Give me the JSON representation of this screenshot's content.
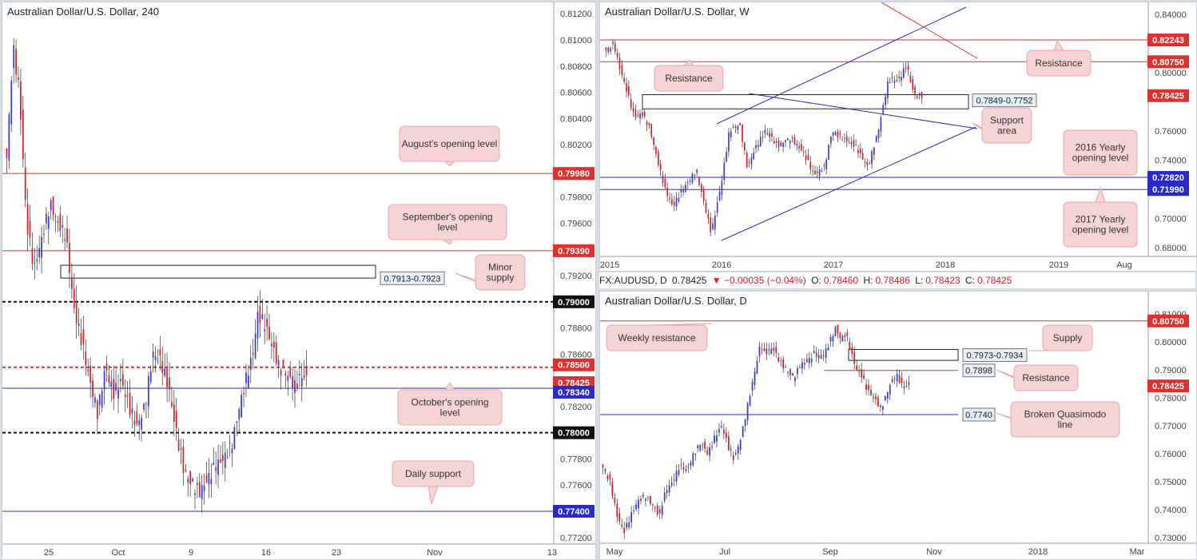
{
  "colors": {
    "bull": "#3b3bdb",
    "bear": "#d8202a",
    "res": "#e03030",
    "sup": "#2a2acc",
    "note_bg": "#f6d3d5",
    "note_border": "#e8a6aa"
  },
  "panels": {
    "left": {
      "title": "Australian Dollar/U.S. Dollar, 240",
      "y_ticks": [
        "0.81200",
        "0.81000",
        "0.80800",
        "0.80600",
        "0.80400",
        "0.80200",
        "0.79800",
        "0.79600",
        "0.79200",
        "0.78800",
        "0.78600",
        "0.78200",
        "0.77800",
        "0.77600",
        "0.77200"
      ],
      "x_ticks": [
        "25",
        "Oct",
        "9",
        "16",
        "23",
        "Nov",
        "13"
      ],
      "price_labels": [
        {
          "v": "0.79980",
          "bg": "#e03030"
        },
        {
          "v": "0.79390",
          "bg": "#e03030"
        },
        {
          "v": "0.79000",
          "bg": "#111111"
        },
        {
          "v": "0.78500",
          "bg": "#e03030"
        },
        {
          "v": "0.78425",
          "bg": "#e03030"
        },
        {
          "v": "0.78340",
          "bg": "#2a2acc"
        },
        {
          "v": "0.78000",
          "bg": "#111111"
        },
        {
          "v": "0.77400",
          "bg": "#2a2acc"
        }
      ],
      "notes": [
        "August's opening level",
        "September's opening level",
        "Minor supply",
        "October's opening level",
        "Daily support"
      ],
      "zone_label": "0.7913-0.7923"
    },
    "weekly": {
      "title": "Australian Dollar/U.S. Dollar, W",
      "y_ticks": [
        "0.84000",
        "0.80000",
        "0.76000",
        "0.74000",
        "0.70000",
        "0.68000"
      ],
      "x_ticks": [
        "2015",
        "2016",
        "2017",
        "2018",
        "2019",
        "Aug"
      ],
      "price_labels": [
        {
          "v": "0.82243",
          "bg": "#e03030"
        },
        {
          "v": "0.80750",
          "bg": "#e03030"
        },
        {
          "v": "0.78425",
          "bg": "#e03030"
        },
        {
          "v": "0.72820",
          "bg": "#2a2acc"
        },
        {
          "v": "0.71990",
          "bg": "#2a2acc"
        }
      ],
      "notes": [
        "Resistance",
        "Resistance",
        "Support area",
        "2016 Yearly opening level",
        "2017 Yearly opening level"
      ],
      "zone_label": "0.7849-0.7752"
    },
    "daily": {
      "title": "Australian Dollar/U.S. Dollar, D",
      "header": {
        "symbol": "FX:AUDUSD, D",
        "last": "0.78425",
        "change": "▼ −0.00035 (−0.04%)",
        "o_label": "O:",
        "o": "0.78460",
        "h_label": "H:",
        "h": "0.78486",
        "l_label": "L:",
        "l": "0.78423",
        "c_label": "C:",
        "c": "0.78425"
      },
      "y_ticks": [
        "0.81000",
        "0.80000",
        "0.79000",
        "0.78000",
        "0.77000",
        "0.76000",
        "0.75000",
        "0.74000",
        "0.73000"
      ],
      "x_ticks": [
        "May",
        "Jul",
        "Sep",
        "Nov",
        "2018",
        "Mar"
      ],
      "price_labels": [
        {
          "v": "0.80750",
          "bg": "#e03030"
        },
        {
          "v": "0.78425",
          "bg": "#e03030"
        }
      ],
      "notes": [
        "Weekly resistance",
        "Supply",
        "Resistance",
        "Broken Quasimodo line"
      ],
      "zone_labels": [
        "0.7973-0.7934",
        "0.7898",
        "0.7740"
      ]
    }
  },
  "chart_data": [
    {
      "type": "candlestick",
      "title": "Australian Dollar/U.S. Dollar, 240",
      "ylim": [
        0.7715,
        0.8125
      ],
      "levels": [
        {
          "label": "August's opening level",
          "y": 0.7998,
          "color": "#e03030",
          "style": "solid"
        },
        {
          "label": "September's opening level",
          "y": 0.7939,
          "color": "#e03030",
          "style": "solid"
        },
        {
          "label": "",
          "y": 0.79,
          "color": "#111111",
          "style": "dashed"
        },
        {
          "label": "",
          "y": 0.785,
          "color": "#e03030",
          "style": "dashed"
        },
        {
          "label": "October's opening level",
          "y": 0.7834,
          "color": "#2a2acc",
          "style": "solid"
        },
        {
          "label": "",
          "y": 0.78,
          "color": "#111111",
          "style": "dashed"
        },
        {
          "label": "Daily support",
          "y": 0.774,
          "color": "#2a2acc",
          "style": "solid"
        }
      ],
      "zone": {
        "label": "Minor supply",
        "low": 0.7913,
        "high": 0.7923
      },
      "path": [
        [
          0,
          0.801
        ],
        [
          8,
          0.8095
        ],
        [
          16,
          0.806
        ],
        [
          25,
          0.796
        ],
        [
          35,
          0.7925
        ],
        [
          45,
          0.795
        ],
        [
          55,
          0.7975
        ],
        [
          65,
          0.796
        ],
        [
          75,
          0.795
        ],
        [
          85,
          0.7895
        ],
        [
          95,
          0.787
        ],
        [
          105,
          0.784
        ],
        [
          115,
          0.7815
        ],
        [
          125,
          0.785
        ],
        [
          135,
          0.783
        ],
        [
          145,
          0.784
        ],
        [
          155,
          0.782
        ],
        [
          165,
          0.7805
        ],
        [
          175,
          0.782
        ],
        [
          185,
          0.786
        ],
        [
          195,
          0.7855
        ],
        [
          205,
          0.7835
        ],
        [
          215,
          0.78
        ],
        [
          225,
          0.777
        ],
        [
          235,
          0.776
        ],
        [
          245,
          0.7755
        ],
        [
          255,
          0.7765
        ],
        [
          265,
          0.7775
        ],
        [
          275,
          0.778
        ],
        [
          285,
          0.779
        ],
        [
          295,
          0.782
        ],
        [
          305,
          0.7845
        ],
        [
          312,
          0.786
        ],
        [
          318,
          0.789
        ],
        [
          325,
          0.7885
        ],
        [
          335,
          0.787
        ],
        [
          345,
          0.785
        ],
        [
          355,
          0.7845
        ],
        [
          365,
          0.7835
        ],
        [
          375,
          0.7845
        ],
        [
          380,
          0.7842
        ]
      ]
    },
    {
      "type": "candlestick",
      "title": "Australian Dollar/U.S. Dollar, W",
      "ylim": [
        0.674,
        0.846
      ],
      "levels": [
        {
          "label": "Resistance",
          "y": 0.82243,
          "color": "#e03030",
          "style": "solid"
        },
        {
          "label": "Resistance",
          "y": 0.8075,
          "color": "#e03030",
          "style": "solid"
        },
        {
          "label": "2016 Yearly opening level",
          "y": 0.7282,
          "color": "#2a2acc",
          "style": "solid"
        },
        {
          "label": "2017 Yearly opening level",
          "y": 0.7199,
          "color": "#2a2acc",
          "style": "solid"
        }
      ],
      "zone": {
        "label": "Support area",
        "low": 0.7752,
        "high": 0.7849
      },
      "path": [
        [
          0,
          0.815
        ],
        [
          6,
          0.82
        ],
        [
          10,
          0.805
        ],
        [
          16,
          0.788
        ],
        [
          22,
          0.77
        ],
        [
          28,
          0.772
        ],
        [
          34,
          0.762
        ],
        [
          40,
          0.74
        ],
        [
          46,
          0.72
        ],
        [
          52,
          0.708
        ],
        [
          58,
          0.718
        ],
        [
          64,
          0.725
        ],
        [
          70,
          0.733
        ],
        [
          76,
          0.712
        ],
        [
          82,
          0.69
        ],
        [
          90,
          0.725
        ],
        [
          96,
          0.76
        ],
        [
          104,
          0.765
        ],
        [
          110,
          0.735
        ],
        [
          116,
          0.748
        ],
        [
          124,
          0.76
        ],
        [
          134,
          0.75
        ],
        [
          144,
          0.755
        ],
        [
          154,
          0.745
        ],
        [
          162,
          0.73
        ],
        [
          170,
          0.735
        ],
        [
          176,
          0.76
        ],
        [
          184,
          0.755
        ],
        [
          194,
          0.75
        ],
        [
          204,
          0.735
        ],
        [
          212,
          0.76
        ],
        [
          220,
          0.795
        ],
        [
          228,
          0.795
        ],
        [
          234,
          0.805
        ],
        [
          240,
          0.785
        ],
        [
          246,
          0.7842
        ]
      ],
      "trendlines": [
        [
          0.759,
          0.835
        ],
        [
          0.694,
          0.76
        ],
        [
          0.782,
          0.762
        ],
        [
          0.842,
          0.808
        ]
      ]
    },
    {
      "type": "candlestick",
      "title": "Australian Dollar/U.S. Dollar, D",
      "ylim": [
        0.728,
        0.814
      ],
      "levels": [
        {
          "label": "Weekly resistance",
          "y": 0.8075,
          "color": "#e03030",
          "style": "solid"
        },
        {
          "label": "Resistance",
          "y": 0.7898,
          "color": "#e03030",
          "style": "solid"
        },
        {
          "label": "Broken Quasimodo line",
          "y": 0.774,
          "color": "#2a2acc",
          "style": "solid"
        }
      ],
      "zone": {
        "label": "Supply",
        "low": 0.7934,
        "high": 0.7973
      },
      "path": [
        [
          0,
          0.755
        ],
        [
          8,
          0.75
        ],
        [
          16,
          0.738
        ],
        [
          24,
          0.732
        ],
        [
          32,
          0.738
        ],
        [
          40,
          0.743
        ],
        [
          48,
          0.745
        ],
        [
          56,
          0.742
        ],
        [
          64,
          0.738
        ],
        [
          72,
          0.747
        ],
        [
          80,
          0.75
        ],
        [
          88,
          0.756
        ],
        [
          96,
          0.754
        ],
        [
          104,
          0.76
        ],
        [
          112,
          0.764
        ],
        [
          120,
          0.76
        ],
        [
          128,
          0.766
        ],
        [
          136,
          0.77
        ],
        [
          144,
          0.762
        ],
        [
          150,
          0.758
        ],
        [
          158,
          0.766
        ],
        [
          166,
          0.778
        ],
        [
          174,
          0.79
        ],
        [
          180,
          0.799
        ],
        [
          186,
          0.796
        ],
        [
          194,
          0.798
        ],
        [
          202,
          0.793
        ],
        [
          210,
          0.79
        ],
        [
          218,
          0.787
        ],
        [
          226,
          0.792
        ],
        [
          234,
          0.793
        ],
        [
          242,
          0.796
        ],
        [
          250,
          0.794
        ],
        [
          258,
          0.799
        ],
        [
          266,
          0.805
        ],
        [
          272,
          0.801
        ],
        [
          278,
          0.803
        ],
        [
          284,
          0.796
        ],
        [
          290,
          0.79
        ],
        [
          296,
          0.788
        ],
        [
          302,
          0.783
        ],
        [
          310,
          0.78
        ],
        [
          318,
          0.776
        ],
        [
          324,
          0.781
        ],
        [
          330,
          0.786
        ],
        [
          336,
          0.788
        ],
        [
          342,
          0.7845
        ],
        [
          350,
          0.7842
        ]
      ]
    }
  ]
}
